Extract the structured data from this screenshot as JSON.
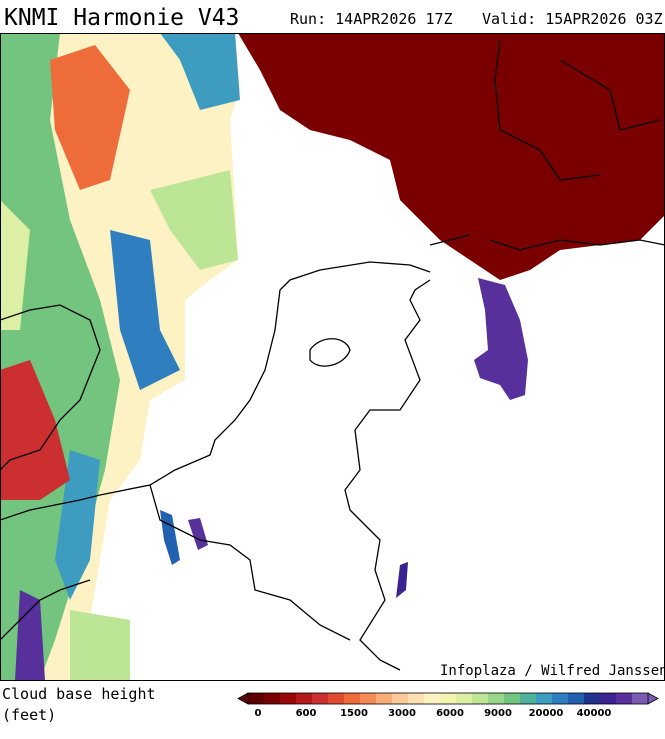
{
  "header": {
    "title": "KNMI Harmonie V43",
    "run": "Run: 14APR2026 17Z",
    "valid": "Valid: 15APR2026 03Z"
  },
  "credit": "Infoplaza / Wilfred Janssen",
  "legend": {
    "title": "Cloud base height",
    "unit": "(feet)",
    "labels": [
      "0",
      "600",
      "1500",
      "3000",
      "6000",
      "9000",
      "20000",
      "40000"
    ],
    "colors": [
      "#5c0000",
      "#7a0000",
      "#980808",
      "#b41818",
      "#cc2f2f",
      "#e04a2e",
      "#ee6c3a",
      "#f58c58",
      "#f8ac78",
      "#fbc89a",
      "#fde0b4",
      "#fdf2c4",
      "#f2f5b2",
      "#dcefa4",
      "#bde596",
      "#98d689",
      "#72c47e",
      "#50b29a",
      "#3d9cc0",
      "#2f7fc0",
      "#2260b0",
      "#22338f",
      "#3a2290",
      "#57309c",
      "#7a5ab2"
    ]
  }
}
